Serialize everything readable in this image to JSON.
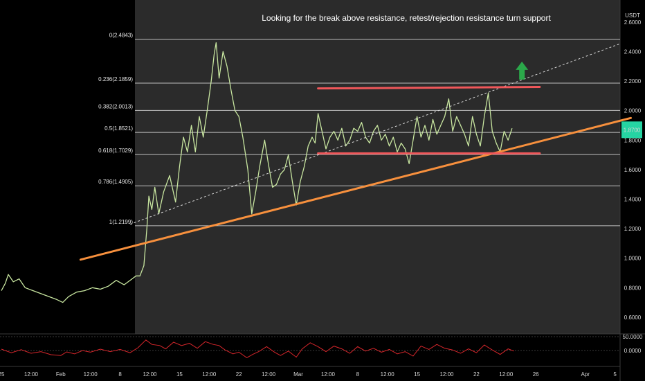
{
  "chart_data": {
    "type": "line",
    "title": "Looking for the break above resistance, retest/rejection resistance turn support",
    "currency": "USDT",
    "price_axis_ticks": [
      "2.6000",
      "2.4000",
      "2.2000",
      "2.0000",
      "1.8000",
      "1.6000",
      "1.4000",
      "1.2000",
      "1.0000",
      "0.8000",
      "0.6000"
    ],
    "ylim": [
      0.52,
      2.66
    ],
    "current_price": 1.87,
    "fibonacci": [
      {
        "label": "0(2.4843)",
        "value": 2.4843
      },
      {
        "label": "0.236(2.1859)",
        "value": 2.1859
      },
      {
        "label": "0.382(2.0013)",
        "value": 2.0013
      },
      {
        "label": "0.5(1.8521)",
        "value": 1.8521
      },
      {
        "label": "0.618(1.7029)",
        "value": 1.7029
      },
      {
        "label": "0.786(1.4905)",
        "value": 1.4905
      },
      {
        "label": "1(1.2199)",
        "value": 1.2199
      }
    ],
    "time_axis_ticks": [
      {
        "label": "25",
        "x": 0
      },
      {
        "label": "12:00",
        "x": 1.5
      },
      {
        "label": "Feb",
        "x": 3
      },
      {
        "label": "12:00",
        "x": 4.5
      },
      {
        "label": "8",
        "x": 6
      },
      {
        "label": "12:00",
        "x": 7.5
      },
      {
        "label": "15",
        "x": 9
      },
      {
        "label": "12:00",
        "x": 10.5
      },
      {
        "label": "22",
        "x": 12
      },
      {
        "label": "12:00",
        "x": 13.5
      },
      {
        "label": "Mar",
        "x": 15
      },
      {
        "label": "12:00",
        "x": 16.5
      },
      {
        "label": "8",
        "x": 18
      },
      {
        "label": "12:00",
        "x": 19.5
      },
      {
        "label": "15",
        "x": 21
      },
      {
        "label": "12:00",
        "x": 22.5
      },
      {
        "label": "22",
        "x": 24
      },
      {
        "label": "12:00",
        "x": 25.5
      },
      {
        "label": "26",
        "x": 27
      },
      {
        "label": "Apr",
        "x": 29.5
      },
      {
        "label": "5",
        "x": 31
      }
    ],
    "price_series": {
      "name": "",
      "points": [
        [
          0.0,
          0.78
        ],
        [
          0.2,
          0.83
        ],
        [
          0.35,
          0.89
        ],
        [
          0.6,
          0.84
        ],
        [
          0.9,
          0.86
        ],
        [
          1.2,
          0.8
        ],
        [
          1.6,
          0.78
        ],
        [
          2.0,
          0.76
        ],
        [
          2.4,
          0.74
        ],
        [
          2.8,
          0.72
        ],
        [
          3.1,
          0.7
        ],
        [
          3.4,
          0.74
        ],
        [
          3.8,
          0.77
        ],
        [
          4.2,
          0.78
        ],
        [
          4.6,
          0.8
        ],
        [
          5.0,
          0.79
        ],
        [
          5.4,
          0.81
        ],
        [
          5.8,
          0.85
        ],
        [
          6.2,
          0.82
        ],
        [
          6.6,
          0.86
        ],
        [
          6.8,
          0.88
        ],
        [
          7.0,
          0.88
        ],
        [
          7.2,
          0.95
        ],
        [
          7.35,
          1.2
        ],
        [
          7.45,
          1.42
        ],
        [
          7.6,
          1.33
        ],
        [
          7.75,
          1.48
        ],
        [
          7.95,
          1.3
        ],
        [
          8.2,
          1.45
        ],
        [
          8.5,
          1.56
        ],
        [
          8.8,
          1.38
        ],
        [
          9.0,
          1.62
        ],
        [
          9.2,
          1.82
        ],
        [
          9.4,
          1.72
        ],
        [
          9.6,
          1.9
        ],
        [
          9.8,
          1.72
        ],
        [
          10.0,
          1.96
        ],
        [
          10.2,
          1.82
        ],
        [
          10.4,
          2.0
        ],
        [
          10.6,
          2.2
        ],
        [
          10.75,
          2.38
        ],
        [
          10.85,
          2.46
        ],
        [
          11.0,
          2.22
        ],
        [
          11.2,
          2.4
        ],
        [
          11.4,
          2.3
        ],
        [
          11.6,
          2.14
        ],
        [
          11.8,
          2.0
        ],
        [
          12.0,
          1.96
        ],
        [
          12.2,
          1.82
        ],
        [
          12.45,
          1.6
        ],
        [
          12.65,
          1.3
        ],
        [
          12.85,
          1.45
        ],
        [
          13.05,
          1.62
        ],
        [
          13.3,
          1.8
        ],
        [
          13.5,
          1.63
        ],
        [
          13.7,
          1.48
        ],
        [
          13.9,
          1.5
        ],
        [
          14.1,
          1.57
        ],
        [
          14.3,
          1.6
        ],
        [
          14.5,
          1.7
        ],
        [
          14.7,
          1.52
        ],
        [
          14.9,
          1.36
        ],
        [
          15.1,
          1.52
        ],
        [
          15.3,
          1.62
        ],
        [
          15.5,
          1.76
        ],
        [
          15.7,
          1.82
        ],
        [
          15.85,
          1.78
        ],
        [
          16.0,
          1.98
        ],
        [
          16.2,
          1.86
        ],
        [
          16.4,
          1.74
        ],
        [
          16.6,
          1.82
        ],
        [
          16.8,
          1.86
        ],
        [
          17.0,
          1.8
        ],
        [
          17.2,
          1.88
        ],
        [
          17.4,
          1.76
        ],
        [
          17.6,
          1.8
        ],
        [
          17.8,
          1.88
        ],
        [
          18.0,
          1.86
        ],
        [
          18.2,
          1.92
        ],
        [
          18.4,
          1.82
        ],
        [
          18.6,
          1.78
        ],
        [
          18.8,
          1.86
        ],
        [
          19.0,
          1.9
        ],
        [
          19.2,
          1.8
        ],
        [
          19.4,
          1.84
        ],
        [
          19.6,
          1.76
        ],
        [
          19.8,
          1.82
        ],
        [
          20.0,
          1.72
        ],
        [
          20.2,
          1.78
        ],
        [
          20.4,
          1.74
        ],
        [
          20.6,
          1.64
        ],
        [
          20.8,
          1.8
        ],
        [
          21.0,
          1.96
        ],
        [
          21.2,
          1.82
        ],
        [
          21.4,
          1.9
        ],
        [
          21.6,
          1.8
        ],
        [
          21.8,
          1.94
        ],
        [
          22.0,
          1.84
        ],
        [
          22.2,
          1.9
        ],
        [
          22.4,
          1.96
        ],
        [
          22.6,
          2.08
        ],
        [
          22.8,
          1.86
        ],
        [
          23.0,
          1.96
        ],
        [
          23.2,
          1.9
        ],
        [
          23.4,
          1.84
        ],
        [
          23.6,
          1.76
        ],
        [
          23.8,
          1.96
        ],
        [
          24.0,
          1.84
        ],
        [
          24.2,
          1.76
        ],
        [
          24.4,
          1.96
        ],
        [
          24.6,
          2.12
        ],
        [
          24.8,
          1.86
        ],
        [
          25.0,
          1.78
        ],
        [
          25.2,
          1.72
        ],
        [
          25.4,
          1.86
        ],
        [
          25.6,
          1.8
        ],
        [
          25.8,
          1.88
        ]
      ]
    },
    "oscillator": {
      "axis_ticks": [
        "50.0000",
        "0.0000"
      ],
      "ylim": [
        -45,
        55
      ],
      "points": [
        [
          0.0,
          5
        ],
        [
          0.5,
          -8
        ],
        [
          1.0,
          3
        ],
        [
          1.5,
          -10
        ],
        [
          2.0,
          -4
        ],
        [
          2.5,
          -15
        ],
        [
          3.0,
          -18
        ],
        [
          3.3,
          -5
        ],
        [
          3.7,
          -12
        ],
        [
          4.1,
          0
        ],
        [
          4.5,
          -6
        ],
        [
          5.0,
          5
        ],
        [
          5.5,
          -4
        ],
        [
          6.0,
          4
        ],
        [
          6.5,
          -8
        ],
        [
          6.9,
          10
        ],
        [
          7.3,
          38
        ],
        [
          7.6,
          22
        ],
        [
          8.0,
          18
        ],
        [
          8.3,
          6
        ],
        [
          8.7,
          30
        ],
        [
          9.1,
          18
        ],
        [
          9.5,
          26
        ],
        [
          9.9,
          8
        ],
        [
          10.3,
          32
        ],
        [
          10.7,
          22
        ],
        [
          11.0,
          18
        ],
        [
          11.3,
          2
        ],
        [
          11.7,
          -12
        ],
        [
          12.0,
          -6
        ],
        [
          12.4,
          -26
        ],
        [
          12.7,
          -14
        ],
        [
          13.0,
          -4
        ],
        [
          13.4,
          14
        ],
        [
          13.8,
          -6
        ],
        [
          14.1,
          -18
        ],
        [
          14.5,
          -2
        ],
        [
          14.9,
          -24
        ],
        [
          15.2,
          6
        ],
        [
          15.6,
          28
        ],
        [
          16.0,
          14
        ],
        [
          16.4,
          -4
        ],
        [
          16.8,
          16
        ],
        [
          17.2,
          6
        ],
        [
          17.6,
          -10
        ],
        [
          18.0,
          14
        ],
        [
          18.4,
          -2
        ],
        [
          18.8,
          8
        ],
        [
          19.2,
          -6
        ],
        [
          19.6,
          4
        ],
        [
          20.0,
          -12
        ],
        [
          20.4,
          -4
        ],
        [
          20.8,
          -20
        ],
        [
          21.2,
          16
        ],
        [
          21.6,
          4
        ],
        [
          22.0,
          22
        ],
        [
          22.4,
          8
        ],
        [
          22.8,
          2
        ],
        [
          23.2,
          -10
        ],
        [
          23.6,
          6
        ],
        [
          24.0,
          -8
        ],
        [
          24.4,
          20
        ],
        [
          24.8,
          2
        ],
        [
          25.2,
          -14
        ],
        [
          25.6,
          6
        ],
        [
          25.9,
          -2
        ]
      ]
    },
    "drawings": {
      "ascending_trendline": {
        "color": "#f7903d",
        "from": [
          4.0,
          0.99
        ],
        "to": [
          31.8,
          1.95
        ]
      },
      "dashed_trendline": {
        "color": "#d9d9d9",
        "from": [
          6.5,
          1.23
        ],
        "to": [
          31.2,
          2.45
        ]
      },
      "resistance_line": {
        "color": "#f0575a",
        "from": [
          16.0,
          2.15
        ],
        "to": [
          27.2,
          2.16
        ]
      },
      "support_line": {
        "color": "#f0575a",
        "from": [
          16.0,
          1.71
        ],
        "to": [
          27.2,
          1.71
        ]
      },
      "up_arrow": {
        "color": "#2ba84a",
        "x": 26.3,
        "y": 2.21
      }
    },
    "colors": {
      "price": "#c8e6a0",
      "oscillator": "#d7262b",
      "highlight_region": "#2d2d2d",
      "price_label_bg": "#25d4a3"
    }
  }
}
